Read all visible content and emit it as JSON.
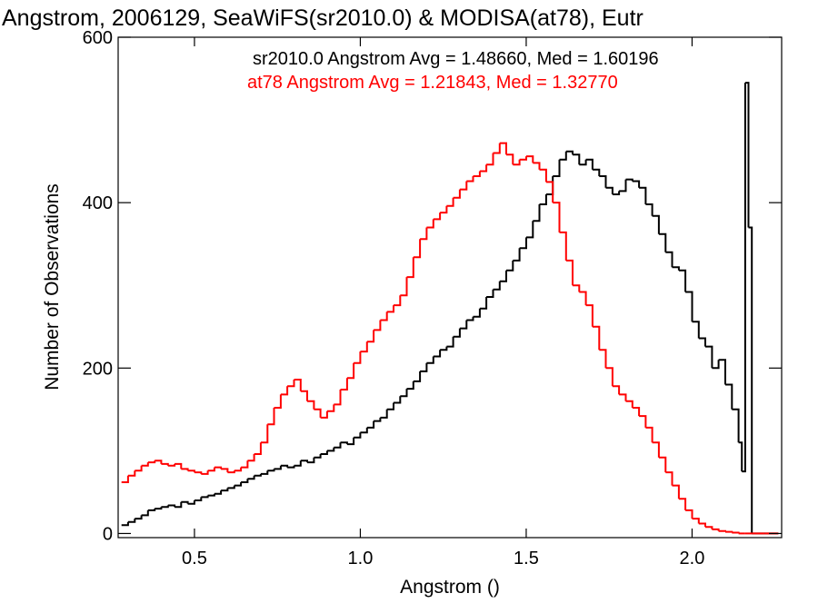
{
  "chart_data": {
    "type": "line",
    "title": "Angstrom, 2006129, SeaWiFS(sr2010.0) & MODISA(at78), Eutr",
    "xlabel": "Angstrom ()",
    "ylabel": "Number of Observations",
    "xlim": [
      0.27,
      2.27
    ],
    "ylim": [
      -5,
      600
    ],
    "x_ticks": [
      0.5,
      1.0,
      1.5,
      2.0
    ],
    "x_tick_labels": [
      "0.5",
      "1.0",
      "1.5",
      "2.0"
    ],
    "y_ticks": [
      0,
      200,
      400,
      600
    ],
    "y_tick_labels": [
      "0",
      "200",
      "400",
      "600"
    ],
    "grid": false,
    "step_style": "histogram",
    "annotations": [
      {
        "text": "sr2010.0 Angstrom Avg = 1.48660, Med = 1.60196",
        "color": "#000000"
      },
      {
        "text": "at78 Angstrom Avg = 1.21843, Med = 1.32770",
        "color": "#ff0000"
      }
    ],
    "series": [
      {
        "color": "#000000",
        "x": [
          0.28,
          0.3,
          0.32,
          0.34,
          0.36,
          0.38,
          0.4,
          0.42,
          0.44,
          0.46,
          0.48,
          0.5,
          0.52,
          0.54,
          0.56,
          0.58,
          0.6,
          0.62,
          0.64,
          0.66,
          0.68,
          0.7,
          0.72,
          0.74,
          0.76,
          0.78,
          0.8,
          0.82,
          0.84,
          0.86,
          0.88,
          0.9,
          0.92,
          0.94,
          0.96,
          0.98,
          1.0,
          1.02,
          1.04,
          1.06,
          1.08,
          1.1,
          1.12,
          1.14,
          1.16,
          1.18,
          1.2,
          1.22,
          1.24,
          1.26,
          1.28,
          1.3,
          1.32,
          1.34,
          1.36,
          1.38,
          1.4,
          1.42,
          1.44,
          1.46,
          1.48,
          1.5,
          1.52,
          1.54,
          1.56,
          1.58,
          1.6,
          1.62,
          1.64,
          1.66,
          1.68,
          1.7,
          1.72,
          1.74,
          1.76,
          1.78,
          1.8,
          1.82,
          1.84,
          1.86,
          1.88,
          1.9,
          1.92,
          1.94,
          1.96,
          1.98,
          2.0,
          2.02,
          2.04,
          2.06,
          2.08,
          2.1,
          2.12,
          2.14,
          2.15,
          2.16,
          2.17,
          2.18,
          2.2,
          2.22,
          2.24,
          2.26
        ],
        "y": [
          10,
          14,
          18,
          22,
          28,
          30,
          32,
          34,
          32,
          38,
          36,
          40,
          44,
          46,
          48,
          52,
          55,
          58,
          62,
          66,
          70,
          72,
          76,
          78,
          82,
          80,
          82,
          88,
          86,
          92,
          96,
          100,
          104,
          110,
          108,
          116,
          122,
          128,
          136,
          140,
          150,
          158,
          166,
          175,
          184,
          196,
          206,
          214,
          222,
          226,
          238,
          248,
          258,
          262,
          272,
          286,
          295,
          305,
          318,
          330,
          345,
          358,
          378,
          398,
          410,
          432,
          452,
          462,
          458,
          446,
          452,
          440,
          432,
          418,
          410,
          414,
          428,
          426,
          418,
          398,
          384,
          362,
          340,
          322,
          318,
          292,
          256,
          236,
          226,
          200,
          210,
          180,
          150,
          110,
          75,
          545,
          370,
          0,
          0,
          0,
          0,
          0
        ]
      },
      {
        "color": "#ff0000",
        "x": [
          0.28,
          0.3,
          0.32,
          0.34,
          0.36,
          0.38,
          0.4,
          0.42,
          0.44,
          0.46,
          0.48,
          0.5,
          0.52,
          0.54,
          0.56,
          0.58,
          0.6,
          0.62,
          0.64,
          0.66,
          0.68,
          0.7,
          0.72,
          0.74,
          0.76,
          0.78,
          0.8,
          0.82,
          0.84,
          0.86,
          0.88,
          0.9,
          0.92,
          0.94,
          0.96,
          0.98,
          1.0,
          1.02,
          1.04,
          1.06,
          1.08,
          1.1,
          1.12,
          1.14,
          1.16,
          1.18,
          1.2,
          1.22,
          1.24,
          1.26,
          1.28,
          1.3,
          1.32,
          1.34,
          1.36,
          1.38,
          1.4,
          1.42,
          1.44,
          1.46,
          1.48,
          1.5,
          1.52,
          1.54,
          1.56,
          1.58,
          1.6,
          1.62,
          1.64,
          1.66,
          1.68,
          1.7,
          1.72,
          1.74,
          1.76,
          1.78,
          1.8,
          1.82,
          1.84,
          1.86,
          1.88,
          1.9,
          1.92,
          1.94,
          1.96,
          1.98,
          2.0,
          2.02,
          2.04,
          2.06,
          2.08,
          2.1,
          2.12,
          2.14,
          2.16,
          2.18,
          2.2,
          2.22,
          2.24,
          2.26
        ],
        "y": [
          62,
          70,
          76,
          82,
          86,
          88,
          84,
          82,
          84,
          78,
          76,
          74,
          72,
          76,
          80,
          78,
          74,
          76,
          80,
          88,
          96,
          110,
          132,
          152,
          168,
          178,
          186,
          172,
          160,
          150,
          140,
          148,
          156,
          174,
          188,
          206,
          220,
          232,
          246,
          258,
          268,
          276,
          288,
          310,
          334,
          356,
          370,
          380,
          388,
          396,
          406,
          416,
          426,
          432,
          438,
          446,
          460,
          472,
          458,
          446,
          452,
          456,
          448,
          440,
          425,
          400,
          364,
          330,
          300,
          292,
          276,
          250,
          222,
          200,
          178,
          168,
          160,
          152,
          142,
          128,
          110,
          92,
          74,
          58,
          42,
          28,
          18,
          12,
          8,
          5,
          3,
          2,
          1,
          0,
          0,
          0,
          0,
          0,
          0,
          0
        ]
      }
    ]
  }
}
